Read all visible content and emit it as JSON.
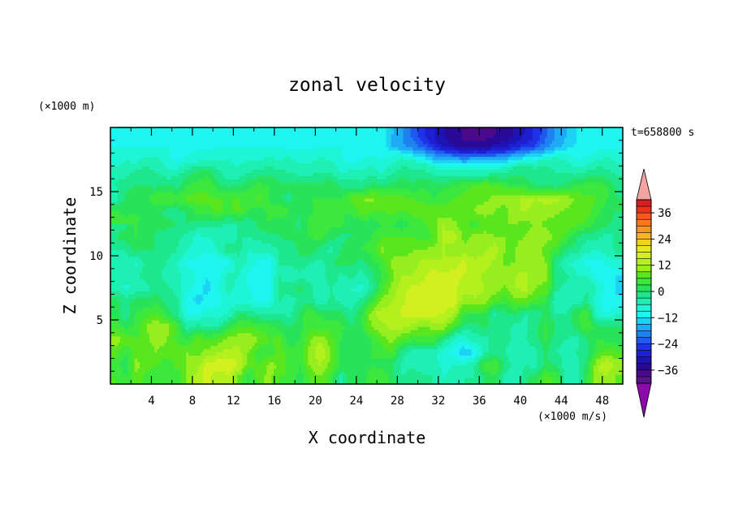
{
  "chart_data": {
    "type": "heatmap",
    "title": "zonal velocity",
    "xlabel": "X coordinate",
    "ylabel": "Z coordinate",
    "y_unit_label": "(×1000 m)",
    "time_label": "t=658800 s",
    "colorbar_unit_label": "(×1000 m/s)",
    "xlim": [
      0,
      50
    ],
    "ylim": [
      0,
      20
    ],
    "x_ticks": [
      "4",
      "8",
      "12",
      "16",
      "20",
      "24",
      "28",
      "32",
      "36",
      "40",
      "44",
      "48"
    ],
    "y_ticks": [
      "5",
      "10",
      "15"
    ],
    "colorbar_ticks": [
      "36",
      "24",
      "12",
      "0",
      "−12",
      "−24",
      "−36"
    ],
    "colorbar_levels": [
      {
        "from": 39,
        "to": 42,
        "color": "#d81e1e"
      },
      {
        "from": 36,
        "to": 39,
        "color": "#f0301e"
      },
      {
        "from": 33,
        "to": 36,
        "color": "#f85a1e"
      },
      {
        "from": 30,
        "to": 33,
        "color": "#f8781e"
      },
      {
        "from": 27,
        "to": 30,
        "color": "#f8961e"
      },
      {
        "from": 24,
        "to": 27,
        "color": "#f8b41e"
      },
      {
        "from": 21,
        "to": 24,
        "color": "#f0d21e"
      },
      {
        "from": 18,
        "to": 21,
        "color": "#e6eb1e"
      },
      {
        "from": 15,
        "to": 18,
        "color": "#d2f01e"
      },
      {
        "from": 12,
        "to": 15,
        "color": "#b4f01e"
      },
      {
        "from": 9,
        "to": 12,
        "color": "#96ee1e"
      },
      {
        "from": 6,
        "to": 9,
        "color": "#5ae61e"
      },
      {
        "from": 3,
        "to": 6,
        "color": "#3ce83c"
      },
      {
        "from": 0,
        "to": 3,
        "color": "#28e35a"
      },
      {
        "from": -3,
        "to": 0,
        "color": "#1ee68c"
      },
      {
        "from": -6,
        "to": -3,
        "color": "#1ef0b4"
      },
      {
        "from": -9,
        "to": -6,
        "color": "#1ef5d7"
      },
      {
        "from": -12,
        "to": -9,
        "color": "#1ef5f0"
      },
      {
        "from": -15,
        "to": -12,
        "color": "#1ed2f5"
      },
      {
        "from": -18,
        "to": -15,
        "color": "#1eaaf5"
      },
      {
        "from": -21,
        "to": -18,
        "color": "#1e82f0"
      },
      {
        "from": -24,
        "to": -21,
        "color": "#1e5af0"
      },
      {
        "from": -27,
        "to": -24,
        "color": "#1e32e6"
      },
      {
        "from": -30,
        "to": -27,
        "color": "#1e1ed2"
      },
      {
        "from": -33,
        "to": -30,
        "color": "#1e14b4"
      },
      {
        "from": -36,
        "to": -33,
        "color": "#280a96"
      },
      {
        "from": -39,
        "to": -36,
        "color": "#4b0a8c"
      },
      {
        "from": -42,
        "to": -39,
        "color": "#5a148c"
      }
    ],
    "colorbar_over_color": "#f4a3a3",
    "colorbar_under_color": "#8c0aa8",
    "field_x_step": 1,
    "field_z_step": 1,
    "field_rows_bottom_to_top": [
      [
        6,
        3,
        8,
        5,
        5,
        4,
        3,
        10,
        14,
        16,
        12,
        14,
        8,
        2,
        8,
        10,
        6,
        5,
        2,
        6,
        9,
        4,
        -4,
        2,
        2,
        4,
        6,
        1,
        -3,
        0,
        -2,
        -3,
        -6,
        -5,
        -3,
        -3,
        0,
        2,
        -4,
        -5,
        -1,
        2,
        7,
        5,
        -4,
        -4,
        3,
        11,
        11,
        8
      ],
      [
        5,
        1,
        10,
        7,
        6,
        4,
        7,
        9,
        11,
        17,
        17,
        18,
        15,
        7,
        6,
        10,
        9,
        5,
        3,
        10,
        12,
        8,
        3,
        3,
        2,
        3,
        2,
        0,
        -4,
        -4,
        -5,
        -4,
        -7,
        -6,
        -6,
        -3,
        5,
        6,
        0,
        -6,
        -3,
        -4,
        1,
        0,
        -5,
        -4,
        1,
        12,
        15,
        11
      ],
      [
        7,
        3,
        8,
        7,
        9,
        7,
        8,
        9,
        8,
        10,
        12,
        13,
        13,
        9,
        4,
        4,
        7,
        5,
        4,
        10,
        15,
        9,
        2,
        2,
        3,
        3,
        4,
        6,
        -2,
        -5,
        -6,
        -5,
        -9,
        -10,
        -15,
        -12,
        -4,
        -2,
        -3,
        -5,
        -5,
        -4,
        0,
        -3,
        -4,
        -3,
        -1,
        5,
        8,
        6
      ],
      [
        11,
        8,
        6,
        8,
        11,
        9,
        5,
        3,
        8,
        6,
        7,
        10,
        11,
        12,
        9,
        6,
        7,
        1,
        3,
        9,
        11,
        7,
        3,
        2,
        0,
        3,
        8,
        10,
        6,
        4,
        5,
        5,
        -1,
        -7,
        -8,
        -4,
        -5,
        0,
        -2,
        -4,
        -3,
        -1,
        3,
        -2,
        -3,
        -4,
        -1,
        3,
        2,
        1
      ],
      [
        5,
        2,
        4,
        9,
        12,
        11,
        5,
        -4,
        -2,
        -3,
        -3,
        3,
        6,
        6,
        5,
        4,
        2,
        0,
        2,
        5,
        5,
        5,
        4,
        0,
        3,
        9,
        11,
        13,
        13,
        11,
        8,
        10,
        11,
        5,
        -1,
        -2,
        1,
        -1,
        -1,
        -4,
        -4,
        -1,
        4,
        0,
        -2,
        1,
        6,
        1,
        1,
        0
      ],
      [
        2,
        -3,
        3,
        5,
        6,
        2,
        -2,
        -9,
        -9,
        -7,
        -8,
        -6,
        0,
        -1,
        -3,
        -4,
        -3,
        -4,
        1,
        6,
        2,
        1,
        1,
        -2,
        2,
        11,
        14,
        13,
        16,
        17,
        16,
        16,
        15,
        12,
        4,
        3,
        3,
        -4,
        -1,
        1,
        -3,
        -3,
        1,
        -3,
        -3,
        3,
        5,
        -7,
        -9,
        -6
      ],
      [
        1,
        -1,
        1,
        1,
        2,
        -1,
        -2,
        -11,
        -13,
        -11,
        -10,
        -7,
        -9,
        -8,
        -10,
        -9,
        -3,
        -5,
        -2,
        -1,
        -6,
        -2,
        -4,
        -6,
        -2,
        3,
        10,
        12,
        14,
        18,
        17,
        16,
        17,
        17,
        10,
        11,
        11,
        6,
        4,
        8,
        8,
        5,
        3,
        -6,
        -5,
        -5,
        -2,
        -8,
        -12,
        -11
      ],
      [
        -4,
        -7,
        -5,
        -4,
        -2,
        -2,
        -5,
        -7,
        -11,
        -13,
        -9,
        -5,
        -7,
        -9,
        -10,
        -11,
        -2,
        -1,
        1,
        -2,
        -6,
        -3,
        -4,
        -6,
        -7,
        -3,
        5,
        10,
        14,
        16,
        16,
        17,
        16,
        16,
        13,
        14,
        12,
        11,
        8,
        12,
        13,
        9,
        8,
        -2,
        -4,
        -5,
        -3,
        -6,
        -10,
        -13
      ],
      [
        -6,
        -4,
        -3,
        -2,
        -1,
        -5,
        -5,
        -7,
        -9,
        -12,
        -10,
        -5,
        -6,
        -10,
        -12,
        -10,
        -3,
        -6,
        -4,
        -5,
        -4,
        -1,
        -4,
        -2,
        -4,
        -1,
        3,
        8,
        12,
        12,
        14,
        17,
        16,
        16,
        15,
        14,
        11,
        9,
        11,
        12,
        13,
        10,
        10,
        -1,
        -2,
        -6,
        -6,
        -10,
        -11,
        -12
      ],
      [
        -4,
        -4,
        -7,
        -2,
        -1,
        -3,
        -6,
        -10,
        -10,
        -12,
        -11,
        -10,
        -4,
        -7,
        -10,
        -11,
        -3,
        -2,
        -1,
        -3,
        -4,
        -1,
        2,
        1,
        -2,
        2,
        4,
        10,
        11,
        10,
        13,
        13,
        12,
        14,
        16,
        13,
        14,
        11,
        8,
        9,
        10,
        12,
        9,
        -2,
        -6,
        -7,
        -10,
        -11,
        -8,
        -7
      ],
      [
        -3,
        -3,
        1,
        0,
        0,
        -1,
        -3,
        -6,
        -7,
        -9,
        -5,
        -1,
        -2,
        -6,
        -5,
        -5,
        -3,
        -3,
        1,
        2,
        -1,
        -4,
        0,
        3,
        3,
        4,
        10,
        7,
        7,
        9,
        9,
        10,
        12,
        9,
        10,
        10,
        11,
        14,
        9,
        9,
        12,
        11,
        7,
        5,
        -1,
        -1,
        -5,
        -6,
        -4,
        -2
      ],
      [
        0,
        2,
        3,
        3,
        -1,
        -2,
        -2,
        -4,
        -7,
        -6,
        -5,
        -5,
        -3,
        -3,
        -2,
        -1,
        0,
        1,
        1,
        3,
        4,
        1,
        -1,
        0,
        2,
        3,
        6,
        6,
        6,
        6,
        4,
        6,
        12,
        14,
        8,
        10,
        11,
        9,
        9,
        8,
        9,
        12,
        11,
        8,
        5,
        0,
        -2,
        -2,
        -5,
        -2
      ],
      [
        -2,
        -1,
        3,
        1,
        2,
        1,
        0,
        0,
        -1,
        -2,
        -2,
        -4,
        -3,
        -3,
        1,
        3,
        0,
        2,
        -1,
        5,
        5,
        4,
        4,
        0,
        1,
        1,
        3,
        3,
        1,
        4,
        5,
        8,
        12,
        10,
        6,
        5,
        6,
        8,
        9,
        9,
        7,
        10,
        8,
        7,
        8,
        7,
        5,
        2,
        1,
        -2
      ],
      [
        -2,
        -2,
        1,
        2,
        1,
        -1,
        -1,
        0,
        4,
        5,
        7,
        5,
        7,
        3,
        1,
        4,
        6,
        3,
        0,
        2,
        6,
        3,
        3,
        4,
        8,
        6,
        6,
        7,
        6,
        7,
        8,
        8,
        7,
        7,
        9,
        9,
        11,
        9,
        8,
        12,
        12,
        11,
        11,
        10,
        8,
        9,
        8,
        4,
        1,
        0
      ],
      [
        -5,
        1,
        3,
        2,
        6,
        6,
        5,
        7,
        8,
        7,
        6,
        6,
        6,
        5,
        7,
        3,
        0,
        -1,
        2,
        3,
        3,
        3,
        3,
        7,
        9,
        10,
        8,
        7,
        7,
        6,
        5,
        3,
        5,
        6,
        7,
        8,
        8,
        10,
        10,
        11,
        13,
        12,
        13,
        13,
        11,
        8,
        7,
        6,
        3,
        0
      ],
      [
        -3,
        -1,
        0,
        0,
        -1,
        0,
        -1,
        3,
        4,
        5,
        1,
        -1,
        0,
        2,
        4,
        3,
        1,
        1,
        1,
        2,
        1,
        3,
        -1,
        -1,
        -2,
        1,
        0,
        1,
        2,
        1,
        2,
        2,
        2,
        3,
        5,
        6,
        8,
        7,
        4,
        3,
        2,
        0,
        -1,
        -2,
        1,
        3,
        4,
        5,
        3,
        -1
      ],
      [
        -4,
        -4,
        -2,
        -1,
        -3,
        -5,
        -4,
        -1,
        1,
        2,
        -2,
        -5,
        -5,
        -3,
        -2,
        -1,
        -2,
        -3,
        -4,
        -4,
        -3,
        -3,
        -6,
        -5,
        -5,
        -4,
        -6,
        -3,
        -1,
        -2,
        -2,
        -4,
        -5,
        -4,
        -5,
        -5,
        -5,
        -4,
        -3,
        -1,
        -1,
        -2,
        -1,
        -3,
        -3,
        -4,
        -2,
        -1,
        -2,
        -4
      ],
      [
        -8,
        -6,
        -7,
        -5,
        -5,
        -8,
        -10,
        -8,
        -7,
        -7,
        -6,
        -6,
        -7,
        -6,
        -6,
        -5,
        -6,
        -5,
        -7,
        -7,
        -5,
        -6,
        -9,
        -10,
        -9,
        -8,
        -9,
        -7,
        -5,
        -6,
        -7,
        -9,
        -9,
        -8,
        -9,
        -7,
        -8,
        -7,
        -7,
        -5,
        -5,
        -5,
        -5,
        -5,
        -6,
        -9,
        -8,
        -6,
        -5,
        -7
      ],
      [
        -9,
        -9,
        -9,
        -9,
        -9,
        -9,
        -10,
        -10,
        -10,
        -10,
        -9,
        -9,
        -9,
        -9,
        -9,
        -9,
        -9,
        -10,
        -10,
        -10,
        -9,
        -9,
        -9,
        -10,
        -10,
        -11,
        -12,
        -13,
        -12,
        -12,
        -11,
        -12,
        -13,
        -13,
        -14,
        -12,
        -12,
        -11,
        -11,
        -11,
        -11,
        -13,
        -11,
        -11,
        -11,
        -12,
        -12,
        -10,
        -10,
        -10
      ],
      [
        -10,
        -10,
        -10,
        -10,
        -10,
        -10,
        -10,
        -10,
        -10,
        -10,
        -10,
        -10,
        -10,
        -10,
        -10,
        -9,
        -10,
        -9,
        -9,
        -10,
        -10,
        -10,
        -10,
        -10,
        -10,
        -10,
        -10,
        -10,
        -10,
        -10,
        -10,
        -10,
        -10,
        -10,
        -10,
        -10,
        -10,
        -10,
        -10,
        -10,
        -10,
        -10,
        -10,
        -10,
        -10,
        -10,
        -10,
        -10,
        -10,
        -10
      ]
    ],
    "field_adjustments": [
      {
        "x": [
          27,
          46
        ],
        "z": [
          15.8,
          20
        ],
        "center": [
          36,
          19.7
        ],
        "radius": [
          10,
          3
        ],
        "delta": -18
      },
      {
        "x": [
          29,
          43
        ],
        "z": [
          17.5,
          20
        ],
        "center": [
          36,
          19.8
        ],
        "radius": [
          7.2,
          2.2
        ],
        "delta": -9
      },
      {
        "x": [
          0,
          9
        ],
        "z": [
          12.5,
          15
        ],
        "center": [
          0,
          13
        ],
        "radius": [
          3,
          1.5
        ],
        "delta": 6
      }
    ]
  }
}
